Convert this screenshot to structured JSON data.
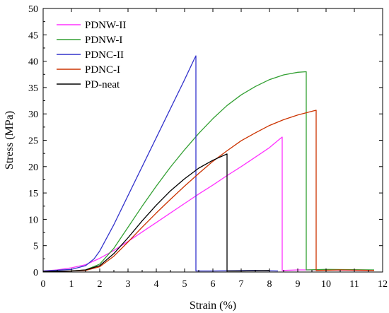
{
  "chart_data": {
    "type": "line",
    "xlabel": "Strain (%)",
    "ylabel": "Stress (MPa)",
    "xlim": [
      0,
      12
    ],
    "ylim": [
      0,
      50
    ],
    "xticks": [
      0,
      1,
      2,
      3,
      4,
      5,
      6,
      7,
      8,
      9,
      10,
      11,
      12
    ],
    "yticks": [
      0,
      5,
      10,
      15,
      20,
      25,
      30,
      35,
      40,
      45,
      50
    ],
    "grid": false,
    "legend_position": "top-left",
    "series": [
      {
        "name": "PDNW-II",
        "color": "#ff33ff",
        "points": [
          [
            0,
            0.2
          ],
          [
            0.5,
            0.4
          ],
          [
            1.0,
            0.8
          ],
          [
            1.5,
            1.4
          ],
          [
            2.0,
            2.6
          ],
          [
            2.5,
            4.1
          ],
          [
            3.0,
            5.8
          ],
          [
            3.5,
            7.6
          ],
          [
            4.0,
            9.4
          ],
          [
            4.5,
            11.2
          ],
          [
            5.0,
            13.0
          ],
          [
            5.5,
            14.8
          ],
          [
            6.0,
            16.5
          ],
          [
            6.5,
            18.3
          ],
          [
            7.0,
            20.0
          ],
          [
            7.5,
            21.8
          ],
          [
            8.0,
            23.6
          ],
          [
            8.4,
            25.4
          ],
          [
            8.45,
            25.6
          ],
          [
            8.45,
            0.3
          ],
          [
            9.0,
            0.4
          ],
          [
            10.0,
            0.4
          ],
          [
            11.7,
            0.3
          ]
        ]
      },
      {
        "name": "PDNW-I",
        "color": "#33a033",
        "points": [
          [
            0,
            0.1
          ],
          [
            1.0,
            0.2
          ],
          [
            1.5,
            0.4
          ],
          [
            2.0,
            1.5
          ],
          [
            2.5,
            4.5
          ],
          [
            3.0,
            8.5
          ],
          [
            3.5,
            12.5
          ],
          [
            4.0,
            16.3
          ],
          [
            4.5,
            19.9
          ],
          [
            5.0,
            23.2
          ],
          [
            5.5,
            26.3
          ],
          [
            6.0,
            29.1
          ],
          [
            6.5,
            31.6
          ],
          [
            7.0,
            33.6
          ],
          [
            7.5,
            35.2
          ],
          [
            8.0,
            36.5
          ],
          [
            8.5,
            37.4
          ],
          [
            9.0,
            37.9
          ],
          [
            9.3,
            38.0
          ],
          [
            9.3,
            0.4
          ],
          [
            10.0,
            0.5
          ],
          [
            11.7,
            0.4
          ]
        ]
      },
      {
        "name": "PDNC-II",
        "color": "#3333cc",
        "points": [
          [
            0,
            0.2
          ],
          [
            1.0,
            0.5
          ],
          [
            1.5,
            1.2
          ],
          [
            1.8,
            2.5
          ],
          [
            2.0,
            4.0
          ],
          [
            2.5,
            9.0
          ],
          [
            3.0,
            14.5
          ],
          [
            3.5,
            20.0
          ],
          [
            4.0,
            25.5
          ],
          [
            4.5,
            31.0
          ],
          [
            5.0,
            36.5
          ],
          [
            5.35,
            40.5
          ],
          [
            5.4,
            41.0
          ],
          [
            5.4,
            0.2
          ],
          [
            6.0,
            0.2
          ],
          [
            7.5,
            0.3
          ],
          [
            8.3,
            0.2
          ]
        ]
      },
      {
        "name": "PDNC-I",
        "color": "#cc3300",
        "points": [
          [
            0,
            0.1
          ],
          [
            1.0,
            0.2
          ],
          [
            1.5,
            0.3
          ],
          [
            2.0,
            1.0
          ],
          [
            2.5,
            3.0
          ],
          [
            3.0,
            5.7
          ],
          [
            3.5,
            8.5
          ],
          [
            4.0,
            11.2
          ],
          [
            4.5,
            13.8
          ],
          [
            5.0,
            16.3
          ],
          [
            5.5,
            18.7
          ],
          [
            6.0,
            21.0
          ],
          [
            6.5,
            23.0
          ],
          [
            7.0,
            24.9
          ],
          [
            7.5,
            26.4
          ],
          [
            8.0,
            27.8
          ],
          [
            8.5,
            28.9
          ],
          [
            9.0,
            29.8
          ],
          [
            9.5,
            30.5
          ],
          [
            9.65,
            30.7
          ],
          [
            9.65,
            0.3
          ],
          [
            10.5,
            0.4
          ],
          [
            11.7,
            0.3
          ]
        ]
      },
      {
        "name": "PD-neat",
        "color": "#000000",
        "points": [
          [
            0,
            0.1
          ],
          [
            1.0,
            0.2
          ],
          [
            1.5,
            0.4
          ],
          [
            2.0,
            1.2
          ],
          [
            2.5,
            3.5
          ],
          [
            3.0,
            6.5
          ],
          [
            3.5,
            9.7
          ],
          [
            4.0,
            12.7
          ],
          [
            4.5,
            15.4
          ],
          [
            5.0,
            17.7
          ],
          [
            5.5,
            19.7
          ],
          [
            6.0,
            21.2
          ],
          [
            6.5,
            22.4
          ],
          [
            6.5,
            0.2
          ],
          [
            7.0,
            0.2
          ],
          [
            8.0,
            0.3
          ]
        ]
      }
    ]
  }
}
